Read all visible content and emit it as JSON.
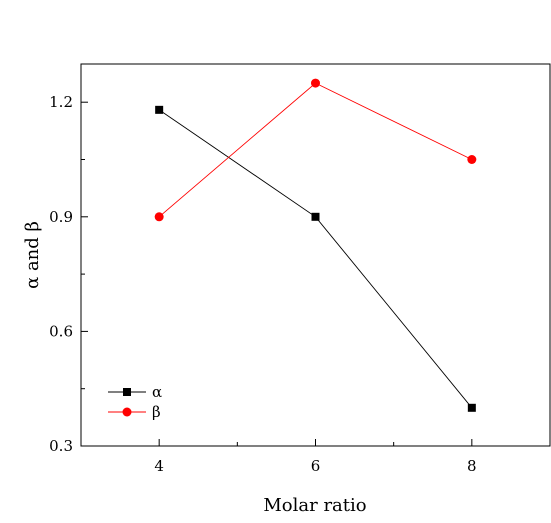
{
  "chart_data": {
    "type": "line",
    "title": "",
    "xlabel": "Molar ratio",
    "ylabel": "α and β",
    "x": [
      4,
      6,
      8
    ],
    "xlim": [
      3,
      9
    ],
    "ylim": [
      0.3,
      1.3
    ],
    "xticks": [
      4,
      6,
      8
    ],
    "xtick_labels": [
      "4",
      "6",
      "8"
    ],
    "yticks": [
      0.3,
      0.6,
      0.9,
      1.2
    ],
    "ytick_labels": [
      "0.3",
      "0.6",
      "0.9",
      "1.2"
    ],
    "grid": false,
    "legend_position": "bottom-left",
    "series": [
      {
        "name": "α",
        "values": [
          1.18,
          0.9,
          0.4
        ],
        "color": "#000000",
        "marker": "square"
      },
      {
        "name": "β",
        "values": [
          0.9,
          1.25,
          1.05
        ],
        "color": "#ff0000",
        "marker": "circle"
      }
    ]
  }
}
